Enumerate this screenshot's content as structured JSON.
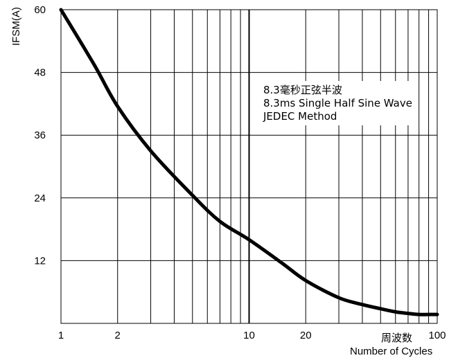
{
  "chart_data": {
    "type": "line",
    "xscale": "log",
    "xlim": [
      1,
      100
    ],
    "ylim": [
      0,
      60
    ],
    "x_ticks": [
      {
        "value": 1,
        "label": "1"
      },
      {
        "value": 2,
        "label": "2"
      },
      {
        "value": 10,
        "label": "10"
      },
      {
        "value": 20,
        "label": "20"
      },
      {
        "value": 100,
        "label": "100"
      }
    ],
    "y_ticks": [
      {
        "value": 12,
        "label": "12"
      },
      {
        "value": 24,
        "label": "24"
      },
      {
        "value": 36,
        "label": "36"
      },
      {
        "value": 48,
        "label": "48"
      },
      {
        "value": 60,
        "label": "60"
      }
    ],
    "xlabel": "Number of Cycles",
    "xlabel_cn": "周波数",
    "ylabel": "IFSM(A)",
    "grid": true,
    "annotations": [
      "8.3毫秒正弦半波",
      "8.3ms Single Half Sine Wave",
      "JEDEC Method"
    ],
    "series": [
      {
        "color": "#000000",
        "x": [
          1,
          1.5,
          2,
          3,
          5,
          7,
          10,
          15,
          20,
          30,
          40,
          50,
          60,
          70,
          80,
          90,
          100
        ],
        "y": [
          60,
          49.5,
          41.5,
          33,
          24.5,
          19.5,
          16,
          11.5,
          8.2,
          4.9,
          3.6,
          2.8,
          2.2,
          1.9,
          1.7,
          1.7,
          1.7
        ]
      }
    ]
  }
}
